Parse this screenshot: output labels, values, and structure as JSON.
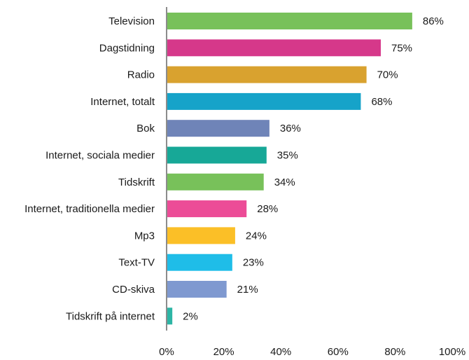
{
  "chart_data": {
    "type": "bar",
    "orientation": "horizontal",
    "title": "",
    "xlabel": "",
    "ylabel": "",
    "xlim": [
      0,
      100
    ],
    "x_ticks": [
      "0%",
      "20%",
      "40%",
      "60%",
      "80%",
      "100%"
    ],
    "grid": false,
    "legend": "none",
    "categories": [
      "Television",
      "Dagstidning",
      "Radio",
      "Internet, totalt",
      "Bok",
      "Internet, sociala medier",
      "Tidskrift",
      "Internet, traditionella medier",
      "Mp3",
      "Text-TV",
      "CD-skiva",
      "Tidskrift på internet"
    ],
    "values": [
      86,
      75,
      70,
      68,
      36,
      35,
      34,
      28,
      24,
      23,
      21,
      2
    ],
    "value_labels": [
      "86%",
      "75%",
      "70%",
      "68%",
      "36%",
      "35%",
      "34%",
      "28%",
      "24%",
      "23%",
      "21%",
      "2%"
    ],
    "colors": [
      "#78c15a",
      "#d6388a",
      "#d9a22f",
      "#16a3c9",
      "#6f84b8",
      "#17a897",
      "#78c15a",
      "#ec4c97",
      "#fbbf27",
      "#1fbde8",
      "#7f99d0",
      "#2db5a5"
    ]
  }
}
